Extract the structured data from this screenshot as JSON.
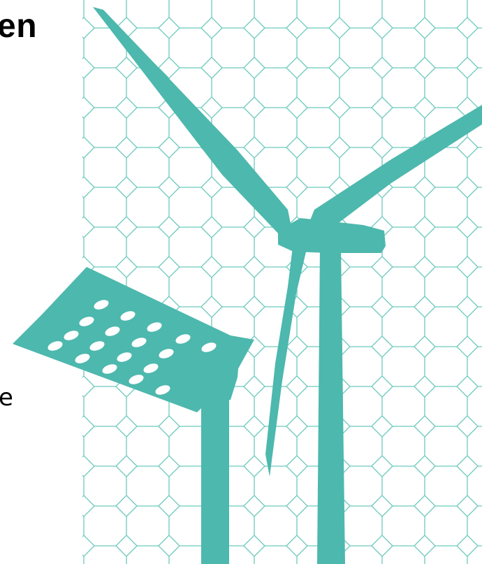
{
  "slide": {
    "title_fragment": "en",
    "body_fragment": "e"
  },
  "illustration": {
    "pattern": "octagon-lattice",
    "objects": [
      "wind-turbine",
      "solar-panel"
    ],
    "colors": {
      "accent": "#4db8ad",
      "pattern_line": "#6cc9bd",
      "background": "#ffffff",
      "text": "#000000"
    }
  }
}
